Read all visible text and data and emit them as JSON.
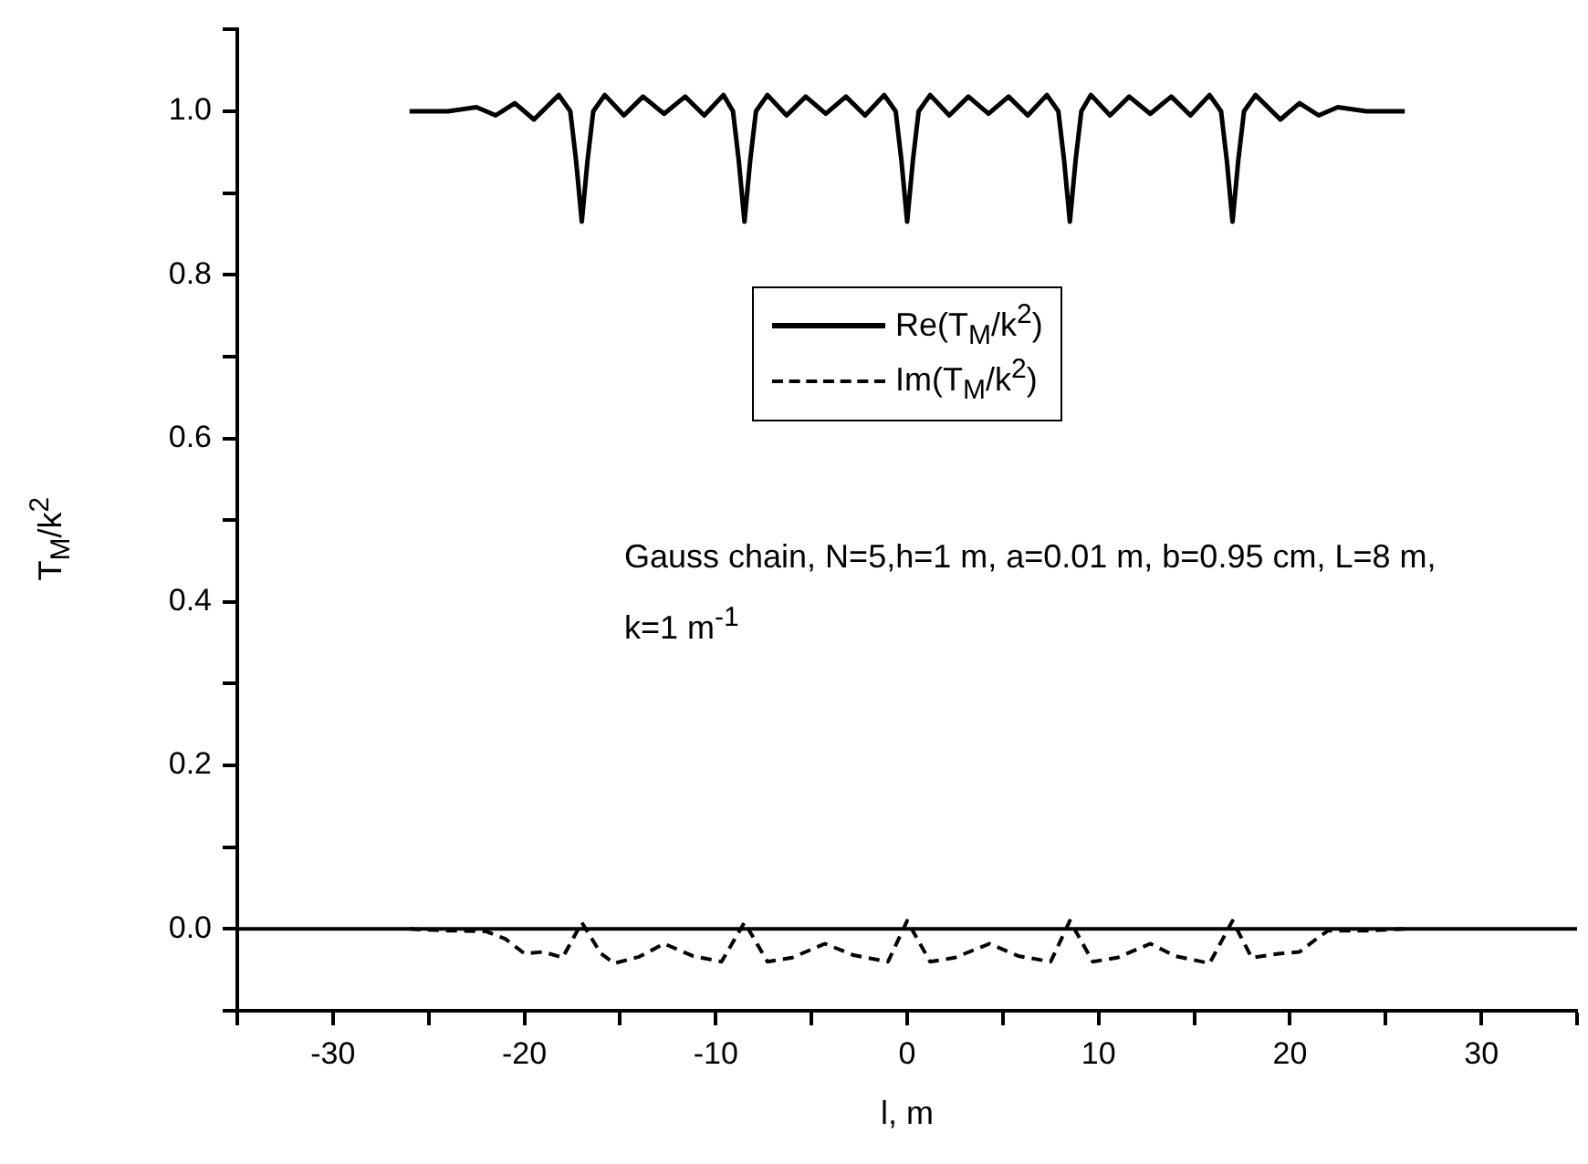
{
  "chart_data": {
    "type": "line",
    "xlabel": "l, m",
    "ylabel": "T$_{M}$/k$^{2}$",
    "xlim": [
      -35,
      35
    ],
    "ylim": [
      -0.1,
      1.1
    ],
    "xticks": [
      {
        "value": -35,
        "label": null
      },
      -30,
      {
        "value": -25,
        "label": null
      },
      -20,
      {
        "value": -15,
        "label": null
      },
      -10,
      {
        "value": -5,
        "label": null
      },
      0,
      {
        "value": 5,
        "label": null
      },
      10,
      {
        "value": 15,
        "label": null
      },
      20,
      {
        "value": 25,
        "label": null
      },
      30,
      {
        "value": 35,
        "label": null
      }
    ],
    "yticks": [
      {
        "value": -0.1,
        "label": null
      },
      {
        "value": 0,
        "label": "0.0"
      },
      {
        "value": 0.1,
        "label": null
      },
      0.2,
      {
        "value": 0.3,
        "label": null
      },
      0.4,
      {
        "value": 0.5,
        "label": null
      },
      0.6,
      {
        "value": 0.7,
        "label": null
      },
      0.8,
      {
        "value": 0.9,
        "label": null
      },
      {
        "value": 1,
        "label": "1.0"
      },
      {
        "value": 1.1,
        "label": null
      }
    ],
    "grid": false,
    "legend": "center",
    "marker": "none",
    "ref_lines": [
      {
        "axis": "y",
        "value": 0,
        "label": null,
        "color": "#000000",
        "line_style": "solid"
      }
    ],
    "annotations": [
      "Gauss chain, N=5,h=1 m, a=0.01 m, b=0.95 cm, L=8 m, k=1 m$^{-1}$"
    ],
    "series": [
      {
        "name": "Re(T$_{M}$/k$^{2}$)",
        "color": "#000000",
        "line_style": "solid",
        "x": [
          -26,
          -24,
          -22.5,
          -21.5,
          -20.5,
          -19.5,
          -18.2,
          -17.6,
          -17.3,
          -17,
          -16.7,
          -16.4,
          -15.8,
          -14.8,
          -13.8,
          -12.7,
          -11.6,
          -10.6,
          -9.6,
          -9.1,
          -8.8,
          -8.5,
          -8.2,
          -7.9,
          -7.3,
          -6.3,
          -5.3,
          -4.25,
          -3.2,
          -2.2,
          -1.2,
          -0.6,
          -0.3,
          0,
          0.3,
          0.6,
          1.2,
          2.2,
          3.2,
          4.25,
          5.3,
          6.3,
          7.3,
          7.9,
          8.2,
          8.5,
          8.8,
          9.1,
          9.6,
          10.6,
          11.6,
          12.7,
          13.8,
          14.8,
          15.8,
          16.4,
          16.7,
          17,
          17.3,
          17.6,
          18.2,
          19.5,
          20.5,
          21.5,
          22.5,
          24,
          26
        ],
        "values": [
          1.0,
          1.0,
          1.005,
          0.995,
          1.01,
          0.99,
          1.02,
          1.0,
          0.94,
          0.865,
          0.94,
          1.0,
          1.02,
          0.995,
          1.018,
          0.997,
          1.018,
          0.995,
          1.02,
          1.0,
          0.94,
          0.865,
          0.94,
          1.0,
          1.02,
          0.995,
          1.018,
          0.997,
          1.018,
          0.995,
          1.02,
          1.0,
          0.94,
          0.865,
          0.94,
          1.0,
          1.02,
          0.995,
          1.018,
          0.997,
          1.018,
          0.995,
          1.02,
          1.0,
          0.94,
          0.865,
          0.94,
          1.0,
          1.02,
          0.995,
          1.018,
          0.997,
          1.018,
          0.995,
          1.02,
          1.0,
          0.94,
          0.865,
          0.94,
          1.0,
          1.02,
          0.99,
          1.01,
          0.995,
          1.005,
          1.0,
          1.0
        ]
      },
      {
        "name": "Im(T$_{M}$/k$^{2}$)",
        "color": "#000000",
        "line_style": "dashed",
        "x": [
          -26,
          -24,
          -22,
          -21,
          -20,
          -19,
          -18,
          -17,
          -16,
          -15.3,
          -14,
          -12.7,
          -11.2,
          -9.7,
          -8.5,
          -7.3,
          -6,
          -4.3,
          -2.8,
          -1,
          0,
          1.2,
          2.5,
          4.3,
          5.8,
          7.5,
          8.5,
          9.7,
          11,
          12.7,
          14,
          15.8,
          17,
          18,
          19.5,
          20.5,
          21.5,
          22,
          24,
          26
        ],
        "values": [
          0,
          -0.002,
          -0.003,
          -0.012,
          -0.03,
          -0.028,
          -0.035,
          0.008,
          -0.03,
          -0.042,
          -0.034,
          -0.018,
          -0.033,
          -0.04,
          0.008,
          -0.04,
          -0.035,
          -0.018,
          -0.032,
          -0.04,
          0.01,
          -0.04,
          -0.035,
          -0.018,
          -0.033,
          -0.04,
          0.01,
          -0.04,
          -0.035,
          -0.018,
          -0.033,
          -0.042,
          0.01,
          -0.035,
          -0.03,
          -0.028,
          -0.01,
          -0.002,
          -0.002,
          0
        ]
      }
    ]
  }
}
